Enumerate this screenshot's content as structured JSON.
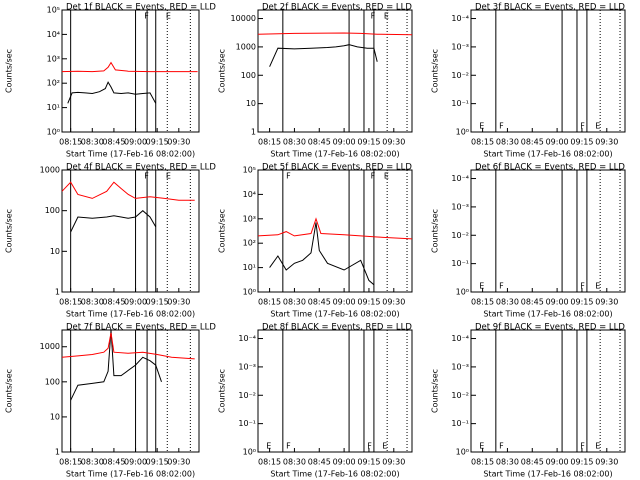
{
  "chart_data": [
    {
      "type": "line",
      "title": "Det 1f BLACK = Events, RED = LLD",
      "xlabel": "Start Time (17-Feb-16 08:02:00)",
      "ylabel": "Counts/sec",
      "log_y": true,
      "xlim": [
        9,
        104
      ],
      "xticks": [
        {
          "value": 15,
          "label": "08:15"
        },
        {
          "value": 30,
          "label": "08:30"
        },
        {
          "value": 45,
          "label": "08:45"
        },
        {
          "value": 60,
          "label": "09:00"
        },
        {
          "value": 75,
          "label": "09:15"
        },
        {
          "value": 90,
          "label": "09:30"
        }
      ],
      "ylim": [
        1,
        100000
      ],
      "yticks": [
        {
          "value": 1,
          "label": "10⁰"
        },
        {
          "value": 10,
          "label": "10¹"
        },
        {
          "value": 100,
          "label": "10²"
        },
        {
          "value": 1000,
          "label": "10³"
        },
        {
          "value": 10000,
          "label": "10⁴"
        },
        {
          "value": 100000,
          "label": "10⁵"
        }
      ],
      "solid_lines": [
        15,
        60,
        68,
        74
      ],
      "dotted_lines": [
        82,
        98
      ],
      "flags": [
        {
          "x": 66,
          "label": "F",
          "position": "top"
        },
        {
          "x": 81,
          "label": "E",
          "position": "top"
        }
      ],
      "series": [
        {
          "color": "#000000",
          "x": [
            13,
            16,
            20,
            25,
            30,
            35,
            39,
            41,
            43,
            45,
            50,
            55,
            60,
            65,
            70,
            74
          ],
          "values": [
            15,
            40,
            42,
            40,
            38,
            45,
            60,
            110,
            70,
            40,
            38,
            40,
            35,
            38,
            40,
            15
          ]
        },
        {
          "color": "#ff0000",
          "x": [
            9,
            20,
            30,
            38,
            41,
            43,
            46,
            55,
            70,
            80,
            90,
            103
          ],
          "values": [
            300,
            310,
            300,
            320,
            450,
            700,
            350,
            310,
            300,
            300,
            300,
            300
          ]
        }
      ]
    },
    {
      "type": "line",
      "title": "Det 2f BLACK = Events, RED = LLD",
      "xlabel": "Start Time (17-Feb-16 08:02:00)",
      "ylabel": "Counts/sec",
      "log_y": true,
      "xlim": [
        8,
        101
      ],
      "xticks": [
        {
          "value": 15,
          "label": "08:15"
        },
        {
          "value": 30,
          "label": "08:30"
        },
        {
          "value": 45,
          "label": "08:45"
        },
        {
          "value": 60,
          "label": "09:00"
        },
        {
          "value": 75,
          "label": "09:15"
        },
        {
          "value": 90,
          "label": "09:30"
        }
      ],
      "ylim": [
        1,
        20000
      ],
      "yticks": [
        1,
        10,
        100,
        1000,
        10000
      ],
      "solid_lines": [
        23,
        63,
        72,
        78
      ],
      "dotted_lines": [
        86,
        98
      ],
      "flags": [
        {
          "x": 76,
          "label": "F",
          "position": "top"
        },
        {
          "x": 84,
          "label": "E",
          "position": "top"
        }
      ],
      "series": [
        {
          "color": "#000000",
          "x": [
            15,
            20,
            30,
            40,
            50,
            55,
            60,
            63,
            68,
            74,
            78,
            80
          ],
          "values": [
            200,
            900,
            850,
            900,
            950,
            1000,
            1100,
            1200,
            1000,
            900,
            900,
            300
          ]
        },
        {
          "color": "#ff0000",
          "x": [
            8,
            30,
            60,
            70,
            80,
            101
          ],
          "values": [
            2800,
            3000,
            3100,
            3000,
            2800,
            2700
          ]
        }
      ]
    },
    {
      "type": "line",
      "title": "Det 3f BLACK = Events, RED = LLD",
      "xlabel": "Start Time (17-Feb-16 08:02:00)",
      "ylabel": "Counts/sec",
      "log_y": true,
      "xlim": [
        8,
        101
      ],
      "xticks": [
        {
          "value": 15,
          "label": "08:15"
        },
        {
          "value": 30,
          "label": "08:30"
        },
        {
          "value": 45,
          "label": "08:45"
        },
        {
          "value": 60,
          "label": "09:00"
        },
        {
          "value": 75,
          "label": "09:15"
        },
        {
          "value": 90,
          "label": "09:30"
        }
      ],
      "ylim": [
        1,
        5e-05
      ],
      "yticks": [
        {
          "value": 1,
          "label": "10⁰"
        },
        {
          "value": 0.1,
          "label": "10⁻¹"
        },
        {
          "value": 0.01,
          "label": "10⁻²"
        },
        {
          "value": 0.001,
          "label": "10⁻³"
        },
        {
          "value": 0.0001,
          "label": "10⁻⁴"
        }
      ],
      "solid_lines": [
        23,
        63,
        72,
        78
      ],
      "dotted_lines": [
        86,
        98
      ],
      "flags": [
        {
          "x": 13,
          "label": "E",
          "position": "bottom"
        },
        {
          "x": 25,
          "label": "F",
          "position": "bottom"
        },
        {
          "x": 74,
          "label": "F",
          "position": "bottom"
        },
        {
          "x": 83,
          "label": "E",
          "position": "bottom"
        }
      ],
      "series": []
    },
    {
      "type": "line",
      "title": "Det 4f BLACK = Events, RED = LLD",
      "xlabel": "Start Time (17-Feb-16 08:02:00)",
      "ylabel": "Counts/sec",
      "log_y": true,
      "xlim": [
        9,
        104
      ],
      "xticks": [
        {
          "value": 15,
          "label": "08:15"
        },
        {
          "value": 30,
          "label": "08:30"
        },
        {
          "value": 45,
          "label": "08:45"
        },
        {
          "value": 60,
          "label": "09:00"
        },
        {
          "value": 75,
          "label": "09:15"
        },
        {
          "value": 90,
          "label": "09:30"
        }
      ],
      "ylim": [
        1,
        1000
      ],
      "yticks": [
        1,
        10,
        100,
        1000
      ],
      "solid_lines": [
        15,
        60,
        68,
        74
      ],
      "dotted_lines": [
        82,
        98
      ],
      "flags": [
        {
          "x": 66,
          "label": "F",
          "position": "top"
        },
        {
          "x": 81,
          "label": "E",
          "position": "top"
        }
      ],
      "series": [
        {
          "color": "#000000",
          "x": [
            15,
            20,
            30,
            40,
            45,
            50,
            55,
            60,
            65,
            70,
            74
          ],
          "values": [
            30,
            70,
            65,
            70,
            75,
            70,
            65,
            70,
            100,
            70,
            40
          ]
        },
        {
          "color": "#ff0000",
          "x": [
            9,
            15,
            20,
            30,
            40,
            45,
            50,
            55,
            60,
            70,
            80,
            90,
            101
          ],
          "values": [
            300,
            500,
            250,
            200,
            300,
            500,
            350,
            250,
            200,
            220,
            200,
            180,
            180
          ]
        }
      ]
    },
    {
      "type": "line",
      "title": "Det 5f BLACK = Events, RED = LLD",
      "xlabel": "Start Time (17-Feb-16 08:02:00)",
      "ylabel": "Counts/sec",
      "log_y": true,
      "xlim": [
        8,
        101
      ],
      "xticks": [
        {
          "value": 15,
          "label": "08:15"
        },
        {
          "value": 30,
          "label": "08:30"
        },
        {
          "value": 45,
          "label": "08:45"
        },
        {
          "value": 60,
          "label": "09:00"
        },
        {
          "value": 75,
          "label": "09:15"
        },
        {
          "value": 90,
          "label": "09:30"
        }
      ],
      "ylim": [
        1,
        100000
      ],
      "yticks": [
        {
          "value": 1,
          "label": "10⁰"
        },
        {
          "value": 10,
          "label": "10¹"
        },
        {
          "value": 100,
          "label": "10²"
        },
        {
          "value": 1000,
          "label": "10³"
        },
        {
          "value": 10000,
          "label": "10⁴"
        },
        {
          "value": 100000,
          "label": "10⁵"
        }
      ],
      "solid_lines": [
        23,
        63,
        72,
        78
      ],
      "dotted_lines": [
        86,
        98
      ],
      "flags": [
        {
          "x": 25,
          "label": "F",
          "position": "top"
        },
        {
          "x": 76,
          "label": "F",
          "position": "top"
        },
        {
          "x": 84,
          "label": "E",
          "position": "top"
        }
      ],
      "series": [
        {
          "color": "#000000",
          "x": [
            15,
            20,
            25,
            30,
            35,
            40,
            43,
            45,
            50,
            60,
            70,
            75,
            78
          ],
          "values": [
            10,
            30,
            8,
            15,
            20,
            40,
            700,
            50,
            15,
            8,
            20,
            3,
            2
          ]
        },
        {
          "color": "#ff0000",
          "x": [
            8,
            20,
            25,
            30,
            40,
            43,
            46,
            60,
            80,
            101
          ],
          "values": [
            200,
            220,
            300,
            200,
            250,
            1000,
            250,
            220,
            180,
            150
          ]
        }
      ]
    },
    {
      "type": "line",
      "title": "Det 6f BLACK = Events, RED = LLD",
      "xlabel": "Start Time (17-Feb-16 08:02:00)",
      "ylabel": "Counts/sec",
      "log_y": true,
      "xlim": [
        8,
        101
      ],
      "xticks": [
        {
          "value": 15,
          "label": "08:15"
        },
        {
          "value": 30,
          "label": "08:30"
        },
        {
          "value": 45,
          "label": "08:45"
        },
        {
          "value": 60,
          "label": "09:00"
        },
        {
          "value": 75,
          "label": "09:15"
        },
        {
          "value": 90,
          "label": "09:30"
        }
      ],
      "ylim": [
        1,
        5e-05
      ],
      "yticks": [
        {
          "value": 1,
          "label": "10⁰"
        },
        {
          "value": 0.1,
          "label": "10⁻¹"
        },
        {
          "value": 0.01,
          "label": "10⁻²"
        },
        {
          "value": 0.001,
          "label": "10⁻³"
        },
        {
          "value": 0.0001,
          "label": "10⁻⁴"
        }
      ],
      "solid_lines": [
        23,
        63,
        72,
        78
      ],
      "dotted_lines": [
        86,
        98
      ],
      "flags": [
        {
          "x": 13,
          "label": "E",
          "position": "bottom"
        },
        {
          "x": 25,
          "label": "F",
          "position": "bottom"
        },
        {
          "x": 74,
          "label": "F",
          "position": "bottom"
        },
        {
          "x": 83,
          "label": "E",
          "position": "bottom"
        }
      ],
      "series": []
    },
    {
      "type": "line",
      "title": "Det 7f BLACK = Events, RED = LLD",
      "xlabel": "Start Time (17-Feb-16 08:02:00)",
      "ylabel": "Counts/sec",
      "log_y": true,
      "xlim": [
        9,
        104
      ],
      "xticks": [
        {
          "value": 15,
          "label": "08:15"
        },
        {
          "value": 30,
          "label": "08:30"
        },
        {
          "value": 45,
          "label": "08:45"
        },
        {
          "value": 60,
          "label": "09:00"
        },
        {
          "value": 75,
          "label": "09:15"
        },
        {
          "value": 90,
          "label": "09:30"
        }
      ],
      "ylim": [
        1,
        3000
      ],
      "yticks": [
        1,
        10,
        100,
        1000
      ],
      "solid_lines": [
        15,
        60,
        68,
        74
      ],
      "dotted_lines": [
        82,
        98
      ],
      "flags": [],
      "series": [
        {
          "color": "#000000",
          "x": [
            15,
            20,
            30,
            38,
            41,
            43,
            45,
            50,
            60,
            65,
            70,
            74,
            78
          ],
          "values": [
            30,
            80,
            90,
            100,
            200,
            3000,
            150,
            150,
            300,
            500,
            400,
            300,
            100
          ]
        },
        {
          "color": "#ff0000",
          "x": [
            9,
            20,
            30,
            38,
            41,
            43,
            45,
            55,
            65,
            75,
            85,
            101
          ],
          "values": [
            500,
            550,
            600,
            700,
            900,
            2500,
            700,
            650,
            700,
            600,
            500,
            450
          ]
        }
      ]
    },
    {
      "type": "line",
      "title": "Det 8f BLACK = Events, RED = LLD",
      "xlabel": "Start Time (17-Feb-16 08:02:00)",
      "ylabel": "Counts/sec",
      "log_y": true,
      "xlim": [
        8,
        101
      ],
      "xticks": [
        {
          "value": 15,
          "label": "08:15"
        },
        {
          "value": 30,
          "label": "08:30"
        },
        {
          "value": 45,
          "label": "08:45"
        },
        {
          "value": 60,
          "label": "09:00"
        },
        {
          "value": 75,
          "label": "09:15"
        },
        {
          "value": 90,
          "label": "09:30"
        }
      ],
      "ylim": [
        1,
        5e-05
      ],
      "yticks": [
        {
          "value": 1,
          "label": "10⁰"
        },
        {
          "value": 0.1,
          "label": "10⁻¹"
        },
        {
          "value": 0.01,
          "label": "10⁻²"
        },
        {
          "value": 0.001,
          "label": "10⁻³"
        },
        {
          "value": 0.0001,
          "label": "10⁻⁴"
        }
      ],
      "solid_lines": [
        23,
        63,
        72,
        78
      ],
      "dotted_lines": [
        86,
        98
      ],
      "flags": [
        {
          "x": 13,
          "label": "E",
          "position": "bottom"
        },
        {
          "x": 25,
          "label": "F",
          "position": "bottom"
        },
        {
          "x": 74,
          "label": "F",
          "position": "bottom"
        },
        {
          "x": 83,
          "label": "E",
          "position": "bottom"
        }
      ],
      "series": []
    },
    {
      "type": "line",
      "title": "Det 9f BLACK = Events, RED = LLD",
      "xlabel": "Start Time (17-Feb-16 08:02:00)",
      "ylabel": "Counts/sec",
      "log_y": true,
      "xlim": [
        8,
        101
      ],
      "xticks": [
        {
          "value": 15,
          "label": "08:15"
        },
        {
          "value": 30,
          "label": "08:30"
        },
        {
          "value": 45,
          "label": "08:45"
        },
        {
          "value": 60,
          "label": "09:00"
        },
        {
          "value": 75,
          "label": "09:15"
        },
        {
          "value": 90,
          "label": "09:30"
        }
      ],
      "ylim": [
        1,
        5e-05
      ],
      "yticks": [
        {
          "value": 1,
          "label": "10⁰"
        },
        {
          "value": 0.1,
          "label": "10⁻¹"
        },
        {
          "value": 0.01,
          "label": "10⁻²"
        },
        {
          "value": 0.001,
          "label": "10⁻³"
        },
        {
          "value": 0.0001,
          "label": "10⁻⁴"
        }
      ],
      "solid_lines": [
        23,
        63,
        72,
        78
      ],
      "dotted_lines": [
        86,
        98
      ],
      "flags": [
        {
          "x": 13,
          "label": "E",
          "position": "bottom"
        },
        {
          "x": 25,
          "label": "F",
          "position": "bottom"
        },
        {
          "x": 74,
          "label": "F",
          "position": "bottom"
        },
        {
          "x": 83,
          "label": "E",
          "position": "bottom"
        }
      ],
      "series": []
    }
  ]
}
